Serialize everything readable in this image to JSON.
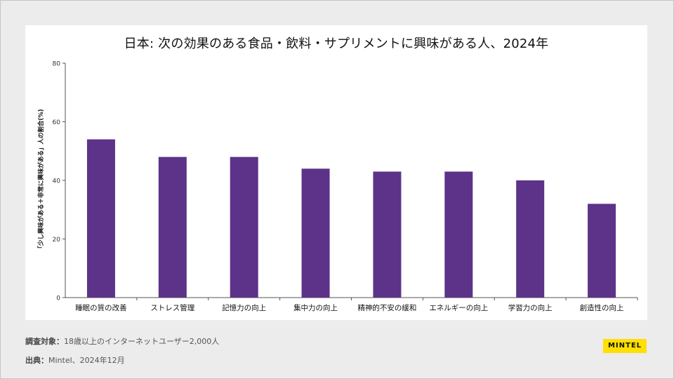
{
  "chart_data": {
    "type": "bar",
    "title": "日本: 次の効果のある食品・飲料・サプリメントに興味がある人、2024年",
    "xlabel": "",
    "ylabel": "「少し興味がある＋非常に興味がある」人の割合(%)",
    "categories": [
      "睡眠の質の改善",
      "ストレス管理",
      "記憶力の向上",
      "集中力の向上",
      "精神的不安の緩和",
      "エネルギーの向上",
      "学習力の向上",
      "創造性の向上"
    ],
    "values": [
      54,
      48,
      48,
      44,
      43,
      43,
      40,
      32
    ],
    "ylim": [
      0,
      80
    ],
    "yticks": [
      0,
      20,
      40,
      60,
      80
    ],
    "bar_color": "#5c3389",
    "grid": false,
    "legend": "none"
  },
  "footer": {
    "survey_label": "調査対象：",
    "survey_text": "18歳以上のインターネットユーザー2,000人",
    "source_label": "出典：",
    "source_text": "Mintel、2024年12月"
  },
  "logo": {
    "text": "MINTEL",
    "color": "#ffe000"
  }
}
